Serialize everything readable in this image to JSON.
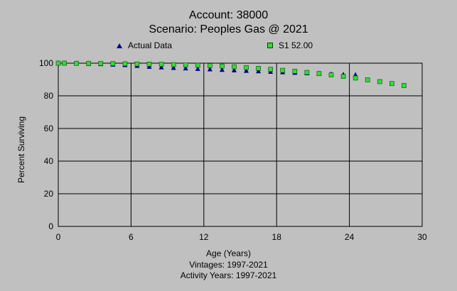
{
  "chart_data": {
    "type": "scatter",
    "title": "Account: 38000",
    "subtitle": "Scenario: Peoples Gas @ 2021",
    "xlabel": "Age (Years)",
    "ylabel": "Percent Surviving",
    "footnotes": [
      "Vintages: 1997-2021",
      "Activity Years: 1997-2021"
    ],
    "xlim": [
      0,
      30
    ],
    "ylim": [
      0,
      100
    ],
    "xticks": [
      "0",
      "6",
      "12",
      "18",
      "24",
      "30"
    ],
    "yticks": [
      "0",
      "20",
      "40",
      "60",
      "80",
      "100"
    ],
    "grid": true,
    "legend_placement": "top",
    "series": [
      {
        "name": "Actual Data",
        "marker": "triangle",
        "color": "#00008b",
        "x": [
          0,
          0.5,
          1.5,
          2.5,
          3.5,
          4.5,
          5.5,
          6.5,
          7.5,
          8.5,
          9.5,
          10.5,
          11.5,
          12.5,
          13.5,
          14.5,
          15.5,
          16.5,
          17.5,
          18.5,
          19.5,
          20.5,
          21.5,
          22.5,
          23.5,
          24.5
        ],
        "y": [
          100,
          100,
          99.9,
          99.7,
          99.5,
          99.2,
          98.9,
          98.4,
          97.9,
          97.5,
          97.2,
          96.9,
          96.6,
          96.3,
          96.0,
          95.7,
          95.4,
          95.1,
          94.8,
          94.5,
          94.2,
          93.9,
          93.6,
          93.3,
          93.0,
          92.8
        ]
      },
      {
        "name": "S1 52.00",
        "marker": "square",
        "color": "#33dd33",
        "x": [
          0,
          0.5,
          1.5,
          2.5,
          3.5,
          4.5,
          5.5,
          6.5,
          7.5,
          8.5,
          9.5,
          10.5,
          11.5,
          12.5,
          13.5,
          14.5,
          15.5,
          16.5,
          17.5,
          18.5,
          19.5,
          20.5,
          21.5,
          22.5,
          23.5,
          24.5,
          25.5,
          26.5,
          27.5,
          28.5
        ],
        "y": [
          100,
          100,
          99.9,
          99.9,
          99.8,
          99.7,
          99.6,
          99.5,
          99.4,
          99.3,
          99.1,
          98.9,
          98.7,
          98.5,
          98.2,
          97.8,
          97.3,
          96.8,
          96.2,
          95.6,
          95.0,
          94.3,
          93.6,
          92.8,
          91.9,
          90.9,
          89.8,
          88.7,
          87.5,
          86.3
        ]
      }
    ]
  }
}
